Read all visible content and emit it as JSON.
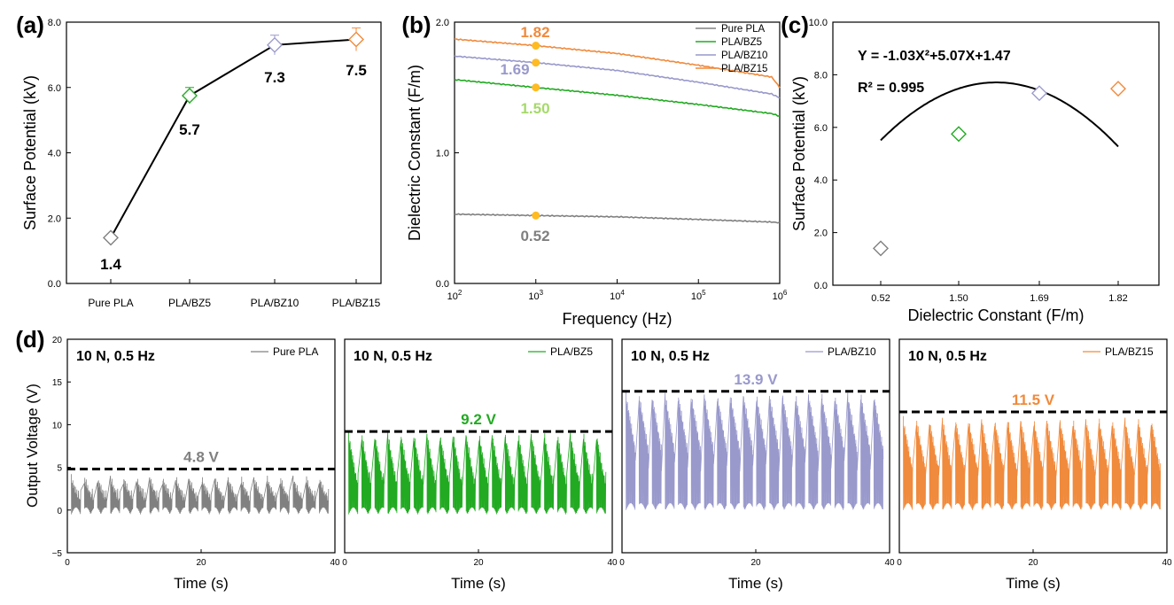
{
  "colors": {
    "pure_pla": "#808080",
    "bz5": "#22aa22",
    "bz10": "#9999cc",
    "bz15": "#f08a3c",
    "dot": "#ffbb22",
    "label_150": "#a6d96a",
    "label_052": "#7f7f7f"
  },
  "chart_data": [
    {
      "id": "a",
      "panel_label": "(a)",
      "type": "line",
      "ylabel": "Surface Potential (kV)",
      "xlabel": "",
      "categories": [
        "Pure PLA",
        "PLA/BZ5",
        "PLA/BZ10",
        "PLA/BZ15"
      ],
      "values": [
        1.4,
        5.75,
        7.3,
        7.47
      ],
      "errors": [
        0.1,
        0.25,
        0.3,
        0.35
      ],
      "data_labels": [
        "1.4",
        "5.7",
        "7.3",
        "7.5"
      ],
      "ylim": [
        0,
        8
      ],
      "yticks": [
        "0.0",
        "2.0",
        "4.0",
        "6.0",
        "8.0"
      ],
      "marker": "diamond"
    },
    {
      "id": "b",
      "panel_label": "(b)",
      "type": "line",
      "ylabel": "Dielectric Constant (F/m)",
      "xlabel": "Frequency (Hz)",
      "x_scale": "log",
      "xlim": [
        100,
        1000000
      ],
      "xticks": [
        "10",
        "10",
        "10",
        "10",
        "10"
      ],
      "xtick_exps": [
        "2",
        "3",
        "4",
        "5",
        "6"
      ],
      "ylim": [
        0,
        2
      ],
      "yticks": [
        "0.0",
        "1.0",
        "2.0"
      ],
      "series": [
        {
          "name": "Pure PLA",
          "x": [
            100,
            1000,
            10000,
            100000,
            800000,
            1000000
          ],
          "values": [
            0.53,
            0.52,
            0.51,
            0.49,
            0.47,
            0.465
          ]
        },
        {
          "name": "PLA/BZ5",
          "x": [
            100,
            1000,
            10000,
            100000,
            800000,
            1000000
          ],
          "values": [
            1.56,
            1.5,
            1.44,
            1.37,
            1.3,
            1.28
          ]
        },
        {
          "name": "PLA/BZ10",
          "x": [
            100,
            1000,
            10000,
            100000,
            800000,
            1000000
          ],
          "values": [
            1.74,
            1.69,
            1.63,
            1.54,
            1.45,
            1.42
          ]
        },
        {
          "name": "PLA/BZ15",
          "x": [
            100,
            1000,
            10000,
            100000,
            800000,
            1000000
          ],
          "values": [
            1.87,
            1.82,
            1.76,
            1.67,
            1.58,
            1.5
          ]
        }
      ],
      "highlight_x": 1000,
      "highlight_values": [
        0.52,
        1.5,
        1.69,
        1.82
      ],
      "data_labels": [
        "0.52",
        "1.50",
        "1.69",
        "1.82"
      ]
    },
    {
      "id": "c",
      "panel_label": "(c)",
      "type": "scatter",
      "ylabel": "Surface Potential (kV)",
      "xlabel": "Dielectric Constant (F/m)",
      "categories": [
        "0.52",
        "1.50",
        "1.69",
        "1.82"
      ],
      "values": [
        1.4,
        5.75,
        7.3,
        7.47
      ],
      "ylim": [
        0,
        10
      ],
      "yticks": [
        "0.0",
        "2.0",
        "4.0",
        "6.0",
        "8.0",
        "10.0"
      ],
      "fit_coefficients": [
        -1.03,
        5.07,
        1.47
      ],
      "equation": "Y = -1.03X²+5.07X+1.47",
      "r_squared": "R² = 0.995",
      "marker": "diamond"
    },
    {
      "id": "d",
      "panel_label": "(d)",
      "type": "line",
      "ylabel": "Output Voltage (V)",
      "xlabel": "Time (s)",
      "xlim": [
        0,
        40
      ],
      "xticks": [
        "0",
        "20",
        "40"
      ],
      "ylim": [
        -5,
        20
      ],
      "yticks": [
        "−5",
        "0",
        "5",
        "10",
        "15",
        "20"
      ],
      "annotation": "10 N, 0.5 Hz",
      "series": [
        {
          "name": "Pure PLA",
          "peak": 4.8,
          "peak_label": "4.8 V",
          "upper": [
            1,
            4.2
          ],
          "lower": [
            -0.5,
            2.5
          ]
        },
        {
          "name": "PLA/BZ5",
          "peak": 9.2,
          "peak_label": "9.2 V",
          "upper": [
            2.5,
            9.3
          ],
          "lower": [
            -0.5,
            4.5
          ]
        },
        {
          "name": "PLA/BZ10",
          "peak": 13.9,
          "peak_label": "13.9 V",
          "upper": [
            7,
            13.9
          ],
          "lower": [
            0,
            6
          ]
        },
        {
          "name": "PLA/BZ15",
          "peak": 11.5,
          "peak_label": "11.5 V",
          "upper": [
            4.5,
            11
          ],
          "lower": [
            0,
            5.5
          ]
        }
      ]
    }
  ]
}
